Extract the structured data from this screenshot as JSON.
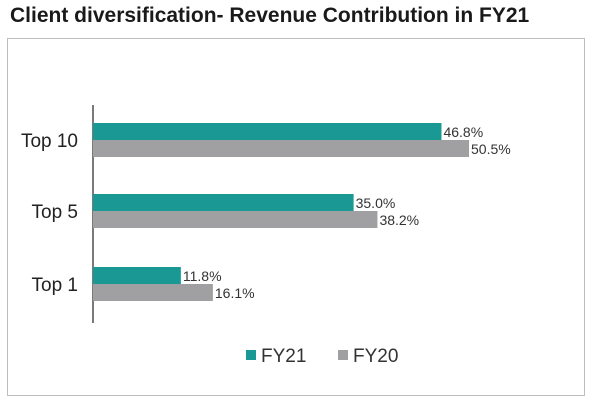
{
  "chart_data": {
    "type": "bar",
    "orientation": "horizontal",
    "title": "Client diversification- Revenue Contribution in FY21",
    "categories": [
      "Top 10",
      "Top 5",
      "Top 1"
    ],
    "series": [
      {
        "name": "FY21",
        "values": [
          46.8,
          35.0,
          11.8
        ],
        "labels": [
          "46.8%",
          "35.0%",
          "11.8%"
        ],
        "color": "#1a9893"
      },
      {
        "name": "FY20",
        "values": [
          50.5,
          38.2,
          16.1
        ],
        "labels": [
          "50.5%",
          "38.2%",
          "16.1%"
        ],
        "color": "#a0a0a2"
      }
    ],
    "xlim": [
      0,
      65
    ],
    "grid": false,
    "legend": "bottom",
    "axis_color": "#222222"
  }
}
